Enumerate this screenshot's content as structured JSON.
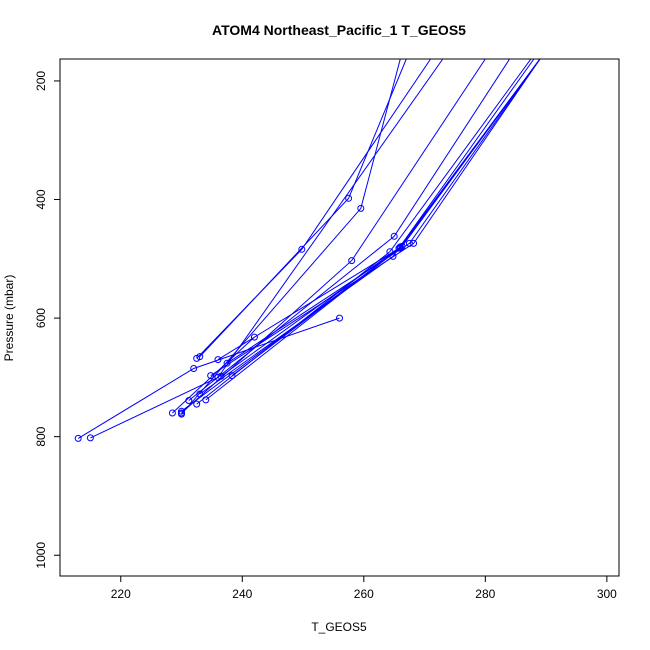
{
  "chart_data": {
    "type": "line",
    "title": "ATOM4 Northeast_Pacific_1 T_GEOS5",
    "xlabel": "T_GEOS5",
    "ylabel": "Pressure (mbar)",
    "xlim": [
      210,
      302
    ],
    "ylim": [
      1035,
      163
    ],
    "y_reversed": true,
    "x_ticks": [
      220,
      240,
      260,
      280,
      300
    ],
    "y_ticks": [
      200,
      400,
      600,
      800,
      1000
    ],
    "grid": false,
    "color": "#0000ff",
    "markers": "open-circle",
    "series": [
      {
        "x": [
          213.0,
          232.0,
          256.0
        ],
        "y": [
          803,
          685,
          600
        ]
      },
      {
        "x": [
          215.0,
          236.0,
          273.0
        ],
        "y": [
          802,
          700,
          163
        ]
      },
      {
        "x": [
          232.5,
          249.8,
          271.0
        ],
        "y": [
          668,
          484,
          163
        ]
      },
      {
        "x": [
          233.0,
          257.5,
          267.0
        ],
        "y": [
          665,
          398,
          163
        ]
      },
      {
        "x": [
          228.5,
          242.0
        ],
        "y": [
          760,
          632
        ]
      },
      {
        "x": [
          230.0,
          258.0,
          280.0
        ],
        "y": [
          760,
          503,
          163
        ]
      },
      {
        "x": [
          230.0,
          259.5,
          266.0
        ],
        "y": [
          762,
          415,
          163
        ]
      },
      {
        "x": [
          231.2,
          265.0,
          284.0
        ],
        "y": [
          739,
          462,
          163
        ]
      },
      {
        "x": [
          232.5,
          264.3,
          287.5
        ],
        "y": [
          745,
          488,
          163
        ]
      },
      {
        "x": [
          233.0,
          264.8,
          288.0
        ],
        "y": [
          728,
          496,
          163
        ]
      },
      {
        "x": [
          234.0,
          265.8,
          289.0
        ],
        "y": [
          738,
          482,
          163
        ]
      },
      {
        "x": [
          236.0,
          266.3,
          289.0
        ],
        "y": [
          670,
          479,
          163
        ]
      },
      {
        "x": [
          237.5,
          267.5,
          289.0
        ],
        "y": [
          676,
          474,
          163
        ]
      },
      {
        "x": [
          234.8,
          268.2,
          289.0
        ],
        "y": [
          697,
          474,
          163
        ]
      },
      {
        "x": [
          236.5,
          266.0,
          289.0
        ],
        "y": [
          698,
          480,
          163
        ]
      },
      {
        "x": [
          238.3,
          266.0,
          289.0
        ],
        "y": [
          697,
          482,
          163
        ]
      },
      {
        "x": [
          230.0,
          266.0,
          289.0
        ],
        "y": [
          757,
          482,
          163
        ]
      }
    ]
  }
}
